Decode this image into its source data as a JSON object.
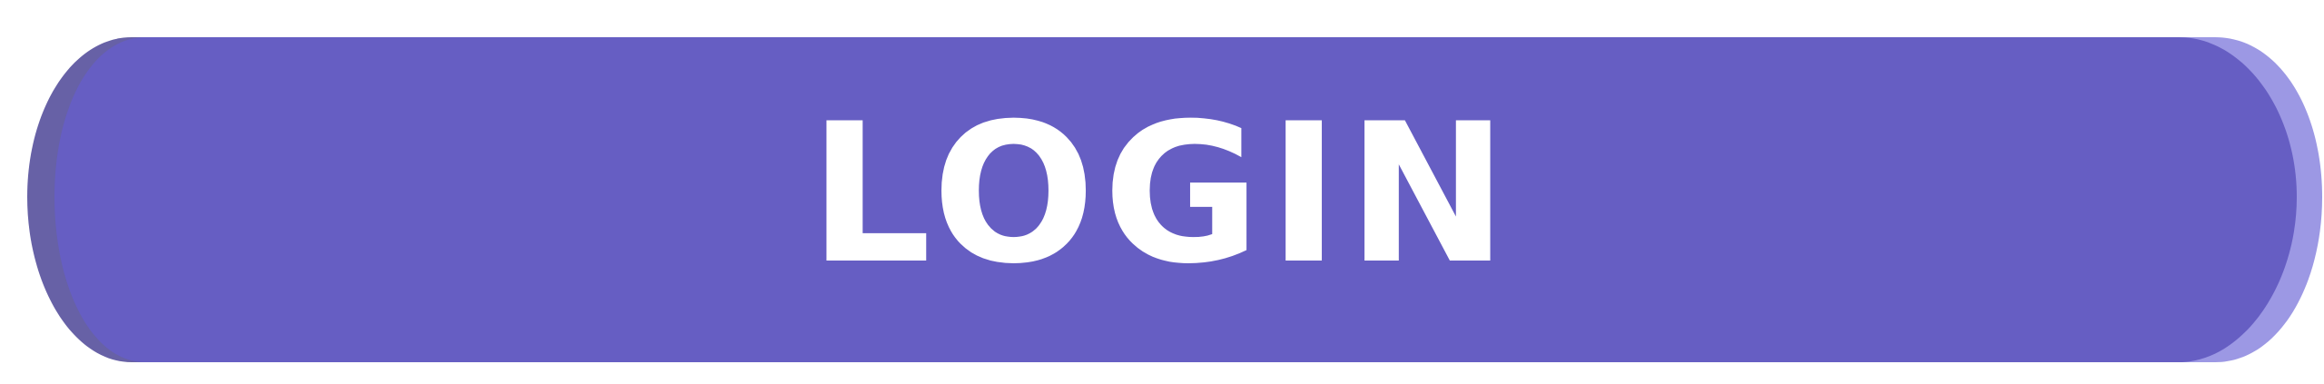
{
  "login_button": {
    "label": "LOGIN",
    "colors": {
      "face": "#665EC3",
      "left_side": "#6761A6",
      "right_side": "#9C98E4",
      "text": "#FFFFFF"
    }
  }
}
